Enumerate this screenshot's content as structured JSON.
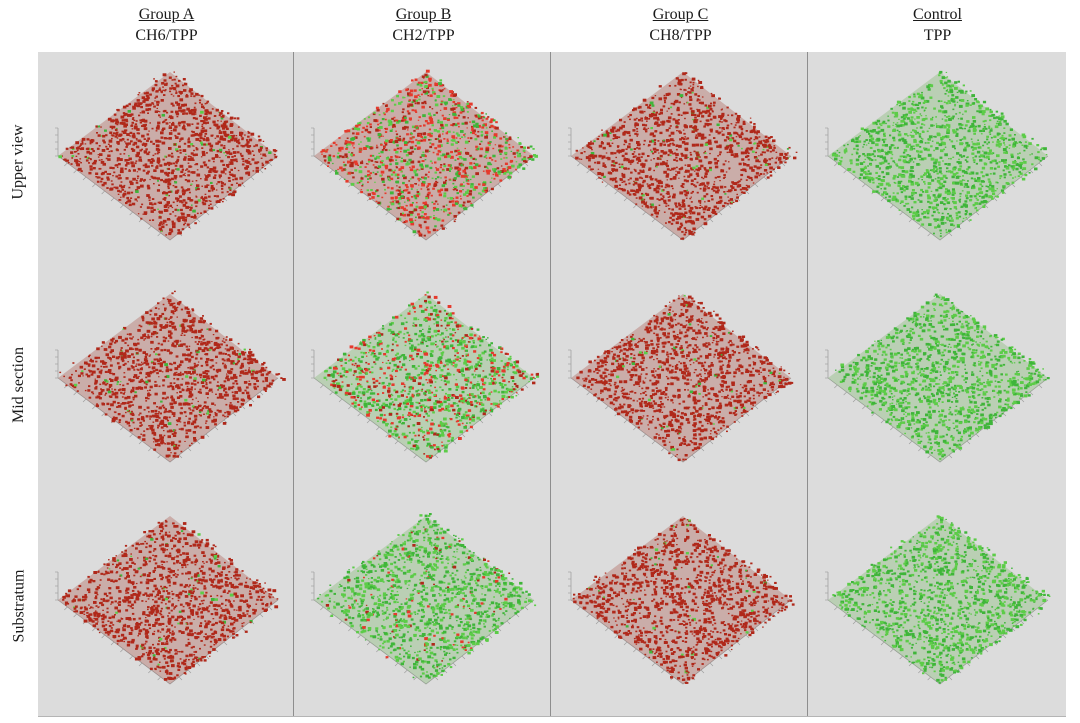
{
  "columns": [
    {
      "group": "Group A",
      "treatment": "CH6/TPP"
    },
    {
      "group": "Group B",
      "treatment": "CH2/TPP"
    },
    {
      "group": "Group C",
      "treatment": "CH8/TPP"
    },
    {
      "group": "Control",
      "treatment": "TPP"
    }
  ],
  "rows": [
    {
      "label": "Upper view"
    },
    {
      "label": "Mid section"
    },
    {
      "label": "Substratum"
    }
  ],
  "colors": {
    "dead_red": "#b0281a",
    "dead_red_bright": "#e53a2c",
    "live_green": "#3fb53a",
    "live_green_light": "#5ccc48",
    "background": "#dcdcdc"
  },
  "green_fraction": [
    [
      0.04,
      0.38,
      0.05,
      1.0
    ],
    [
      0.04,
      0.62,
      0.04,
      1.0
    ],
    [
      0.03,
      0.92,
      0.03,
      1.0
    ]
  ]
}
